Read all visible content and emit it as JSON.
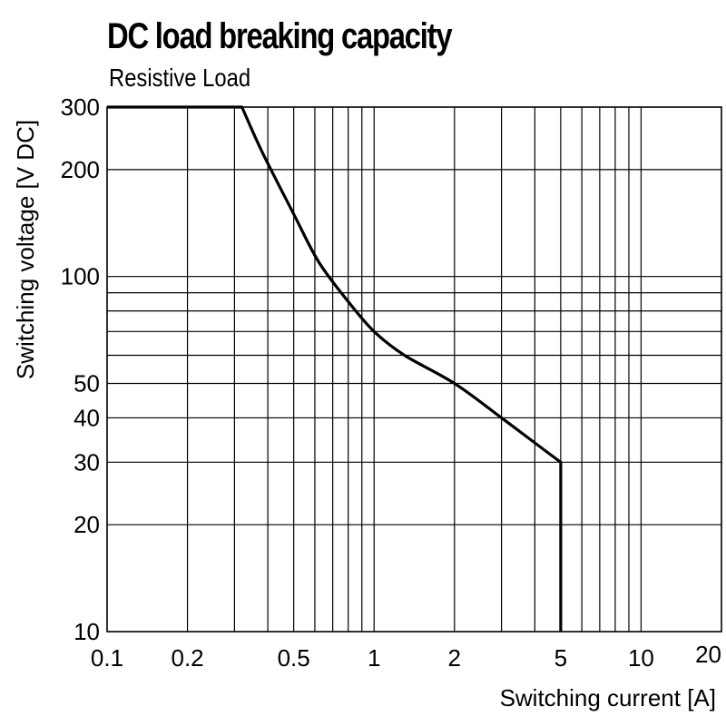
{
  "chart_data": {
    "type": "line",
    "title": "DC load breaking capacity",
    "subtitle": "Resistive Load",
    "xlabel": "Switching current [A]",
    "ylabel": "Switching voltage [V DC]",
    "x_scale": "log",
    "y_scale": "log",
    "xlim": [
      0.1,
      20
    ],
    "ylim": [
      10,
      300
    ],
    "grid": true,
    "x_ticks": [
      {
        "value": 0.1,
        "label": "0.1"
      },
      {
        "value": 0.2,
        "label": "0.2"
      },
      {
        "value": 0.5,
        "label": "0.5"
      },
      {
        "value": 1,
        "label": "1"
      },
      {
        "value": 2,
        "label": "2"
      },
      {
        "value": 5,
        "label": "5"
      },
      {
        "value": 10,
        "label": "10"
      },
      {
        "value": 20,
        "label": "20"
      }
    ],
    "y_ticks": [
      {
        "value": 10,
        "label": "10"
      },
      {
        "value": 20,
        "label": "20"
      },
      {
        "value": 30,
        "label": "30"
      },
      {
        "value": 40,
        "label": "40"
      },
      {
        "value": 50,
        "label": "50"
      },
      {
        "value": 100,
        "label": "100"
      },
      {
        "value": 200,
        "label": "200"
      },
      {
        "value": 300,
        "label": "300"
      }
    ],
    "x_gridlines": [
      0.2,
      0.3,
      0.4,
      0.5,
      0.6,
      0.7,
      0.8,
      0.9,
      1,
      2,
      3,
      4,
      5,
      6,
      7,
      8,
      9,
      10
    ],
    "y_gridlines": [
      20,
      30,
      40,
      50,
      60,
      70,
      80,
      90,
      100,
      200
    ],
    "series": [
      {
        "x": [
          0.1,
          0.32,
          0.38,
          0.5,
          0.62,
          0.8,
          1.0,
          1.3,
          2.0,
          3.0,
          4.0,
          5.0,
          5.0
        ],
        "y": [
          300,
          300,
          225,
          150,
          110,
          85,
          70,
          60,
          50,
          40,
          34,
          30,
          10
        ]
      }
    ]
  }
}
